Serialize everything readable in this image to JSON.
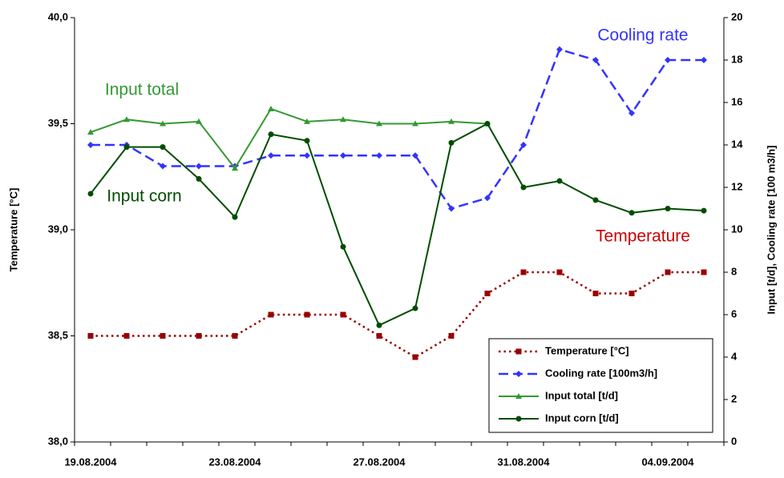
{
  "chart_data": {
    "type": "line",
    "y_label": "Temperature [°C]",
    "y2_label": "Input [t/d],  Cooling rate [100 m3/h]",
    "categories": [
      "19.08.2004",
      null,
      null,
      null,
      "23.08.2004",
      null,
      null,
      null,
      "27.08.2004",
      null,
      null,
      null,
      "31.08.2004",
      null,
      null,
      null,
      "04.09.2004",
      null
    ],
    "ylim": [
      38.0,
      40.0
    ],
    "yticks": [
      {
        "value": 38.0,
        "label": "38,0"
      },
      {
        "value": 38.5,
        "label": "38,5"
      },
      {
        "value": 39.0,
        "label": "39,0"
      },
      {
        "value": 39.5,
        "label": "39,5"
      },
      {
        "value": 40.0,
        "label": "40,0"
      }
    ],
    "y2lim": [
      0,
      20
    ],
    "y2ticks": [
      0,
      2,
      4,
      6,
      8,
      10,
      12,
      14,
      16,
      18,
      20
    ],
    "series": [
      {
        "name": "Temperature [°C]",
        "color": "#990000",
        "style": "dotted",
        "marker": "square",
        "axis": "y",
        "values": [
          38.5,
          38.5,
          38.5,
          38.5,
          38.5,
          38.6,
          38.6,
          38.6,
          38.5,
          38.4,
          38.5,
          38.7,
          38.8,
          38.8,
          38.7,
          38.7,
          38.8,
          38.8
        ]
      },
      {
        "name": "Cooling rate [100m3/h]",
        "color": "#3333ff",
        "style": "dashed",
        "marker": "diamond",
        "axis": "y2",
        "values": [
          14,
          14,
          13,
          13,
          13,
          13.5,
          13.5,
          13.5,
          13.5,
          13.5,
          11,
          11.5,
          14,
          18.5,
          18,
          15.5,
          18,
          18
        ]
      },
      {
        "name": "Input total [t/d]",
        "color": "#339933",
        "style": "solid",
        "marker": "triangle",
        "axis": "y2",
        "values": [
          14.6,
          15.2,
          15.0,
          15.1,
          12.9,
          15.7,
          15.1,
          15.2,
          15.0,
          15.0,
          15.1,
          15.0,
          null,
          null,
          null,
          null,
          null,
          null
        ]
      },
      {
        "name": "Input corn [t/d]",
        "color": "#004d00",
        "style": "solid",
        "marker": "circle",
        "axis": "y2",
        "values": [
          11.7,
          13.9,
          13.9,
          12.4,
          10.6,
          14.5,
          14.2,
          9.2,
          5.5,
          6.3,
          14.1,
          15.0,
          12.0,
          12.3,
          11.4,
          10.8,
          11.0,
          10.9
        ]
      }
    ],
    "annotations": [
      {
        "text": "Cooling rate",
        "color": "#3333ff"
      },
      {
        "text": "Input total",
        "color": "#339933"
      },
      {
        "text": "Input corn",
        "color": "#004d00"
      },
      {
        "text": "Temperature",
        "color": "#cc0000"
      }
    ],
    "legend": "lower right"
  }
}
